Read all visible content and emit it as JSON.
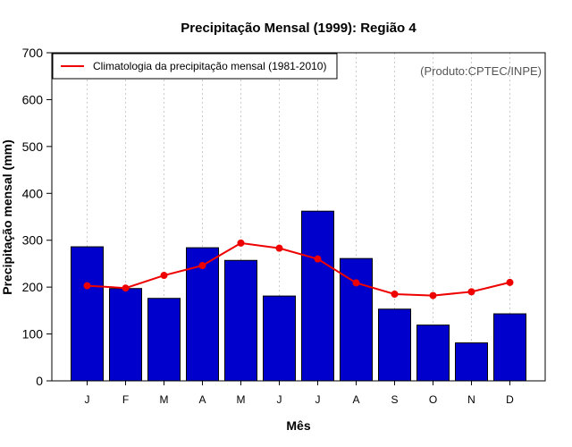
{
  "chart_data": {
    "type": "bar",
    "title": "Precipitação Mensal (1999): Região 4",
    "xlabel": "Mês",
    "ylabel": "Precipitação mensal (mm)",
    "ylim": [
      0,
      700
    ],
    "yticks": [
      0,
      100,
      200,
      300,
      400,
      500,
      600,
      700
    ],
    "categories": [
      "J",
      "F",
      "M",
      "A",
      "M",
      "J",
      "J",
      "A",
      "S",
      "O",
      "N",
      "D"
    ],
    "series": [
      {
        "name": "Precipitação mensal (1999)",
        "type": "bar",
        "color": "#0000cc",
        "values": [
          286,
          197,
          176,
          284,
          257,
          181,
          362,
          261,
          153,
          119,
          81,
          143
        ]
      },
      {
        "name": "Climatologia da precipitação mensal (1981-2010)",
        "type": "line",
        "color": "#ee0000",
        "values": [
          203,
          198,
          225,
          246,
          294,
          283,
          260,
          209,
          185,
          182,
          190,
          210
        ]
      }
    ],
    "grid": "vertical dotted",
    "legend": {
      "position": "top-left",
      "entries": [
        "Climatologia da precipitação mensal (1981-2010)"
      ]
    },
    "annotation": "(Produto:CPTEC/INPE)"
  }
}
